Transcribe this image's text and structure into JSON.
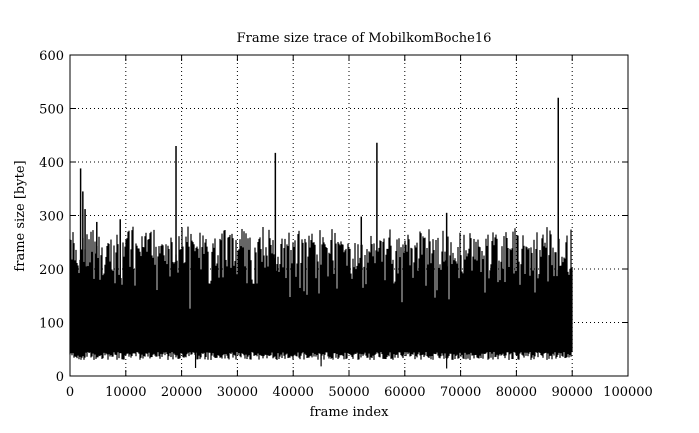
{
  "chart_data": {
    "type": "line",
    "title": "Frame size trace of MobilkomBoche16",
    "xlabel": "frame index",
    "ylabel": "frame size [byte]",
    "xlim": [
      0,
      100000
    ],
    "ylim": [
      0,
      600
    ],
    "xticks": [
      0,
      10000,
      20000,
      30000,
      40000,
      50000,
      60000,
      70000,
      80000,
      90000,
      100000
    ],
    "yticks": [
      0,
      100,
      200,
      300,
      400,
      500,
      600
    ],
    "grid": true,
    "grid_style": "dotted",
    "frame_count": 90000,
    "typical_range": [
      30,
      260
    ],
    "peaks": [
      {
        "x": 1900,
        "y": 388
      },
      {
        "x": 2300,
        "y": 345
      },
      {
        "x": 2700,
        "y": 312
      },
      {
        "x": 4800,
        "y": 288
      },
      {
        "x": 9000,
        "y": 293
      },
      {
        "x": 19000,
        "y": 430
      },
      {
        "x": 36800,
        "y": 417
      },
      {
        "x": 52200,
        "y": 298
      },
      {
        "x": 55000,
        "y": 436
      },
      {
        "x": 67500,
        "y": 305
      },
      {
        "x": 87500,
        "y": 520
      }
    ],
    "minima": [
      {
        "x": 22500,
        "y": 15
      },
      {
        "x": 45000,
        "y": 18
      },
      {
        "x": 67500,
        "y": 14
      }
    ],
    "color": "#000000"
  }
}
